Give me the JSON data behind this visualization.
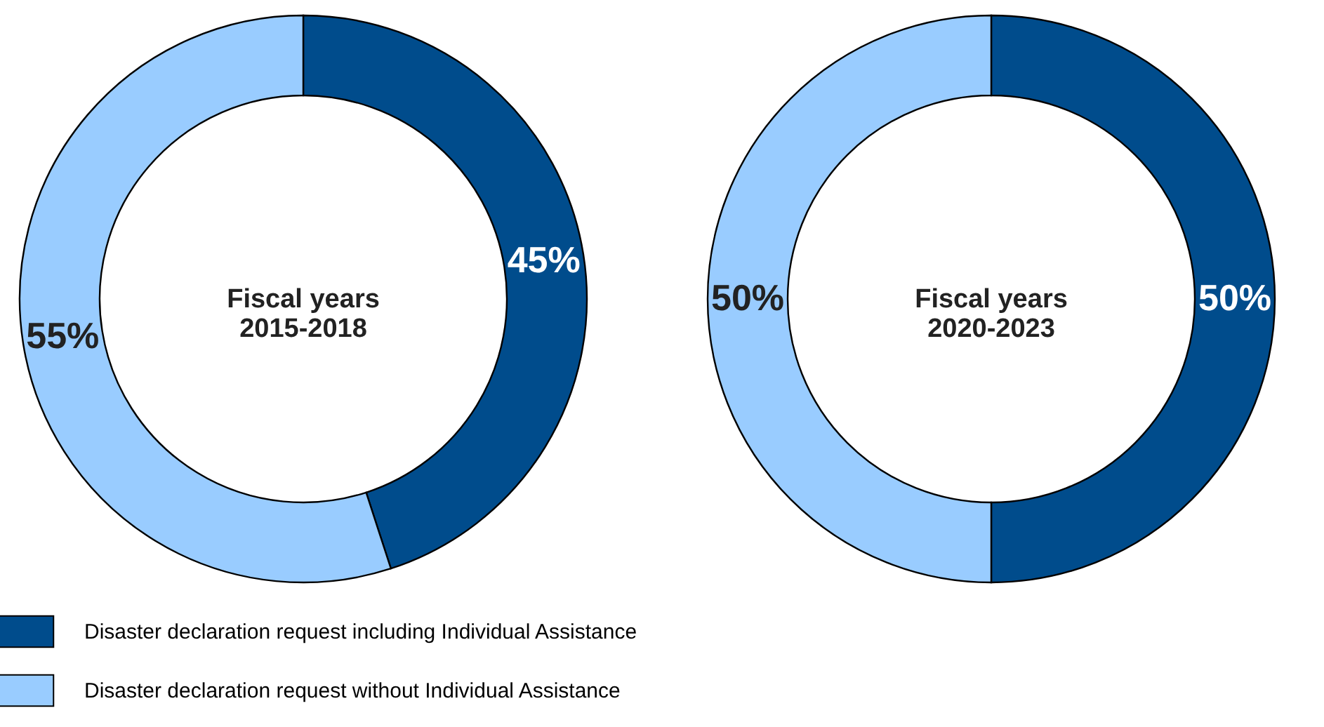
{
  "chart_data": [
    {
      "type": "donut",
      "title": "Fiscal years\n2015-2018",
      "categories": [
        "Disaster declaration request including Individual Assistance",
        "Disaster declaration request without Individual Assistance"
      ],
      "values": [
        45,
        55
      ],
      "colors": [
        "#004c8c",
        "#99ccff"
      ],
      "value_labels": [
        "45%",
        "55%"
      ],
      "legend": "bottom left"
    },
    {
      "type": "donut",
      "title": "Fiscal years\n2020-2023",
      "categories": [
        null,
        null
      ],
      "values": [
        50,
        50
      ],
      "colors": [
        "#004c8c",
        "#99ccff"
      ],
      "value_labels": [
        "50%",
        "50%"
      ]
    }
  ]
}
